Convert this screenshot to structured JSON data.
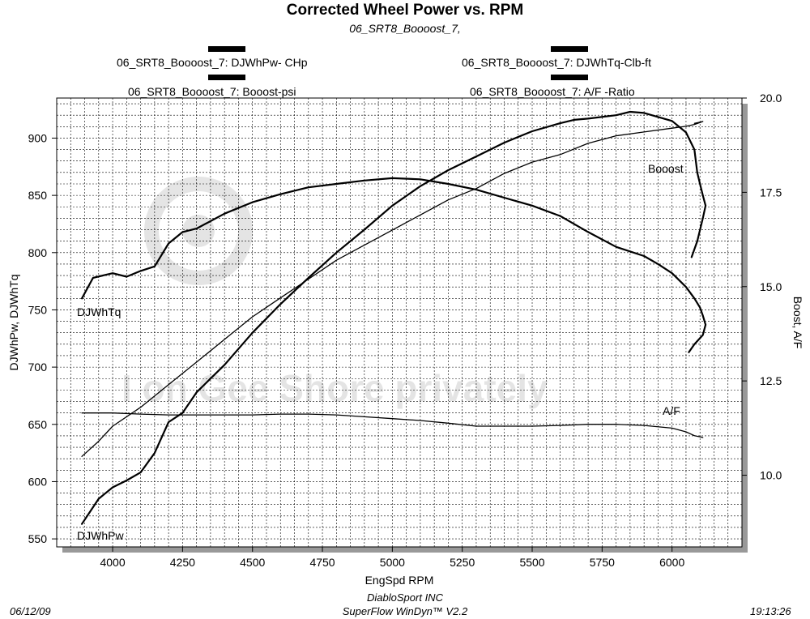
{
  "header": {
    "title": "Corrected Wheel Power vs. RPM",
    "subtitle": "06_SRT8_Boooost_7,"
  },
  "legend": {
    "power": "06_SRT8_Boooost_7: DJWhPw- CHp",
    "torque": "06_SRT8_Boooost_7: DJWhTq-Clb-ft",
    "boost": "06_SRT8_Boooost_7: Booost-psi",
    "af": "06_SRT8_Boooost_7:  A/F  -Ratio"
  },
  "footer": {
    "date": "06/12/09",
    "company": "DiabloSport INC",
    "software": "SuperFlow WinDyn™ V2.2",
    "time": "19:13:26"
  },
  "chart_data": {
    "type": "line",
    "title": "Corrected Wheel Power vs. RPM",
    "subtitle": "06_SRT8_Boooost_7,",
    "xlabel": "EngSpd  RPM",
    "ylabel_left": "DJWhPw,  DJWhTq",
    "ylabel_right": "Boost,  A/F",
    "xlim": [
      3800,
      6250
    ],
    "ylim_left": [
      543,
      935
    ],
    "ylim_right": [
      8.1,
      20.0
    ],
    "x_ticks": [
      4000,
      4250,
      4500,
      4750,
      5000,
      5250,
      5500,
      5750,
      6000
    ],
    "y_ticks_left": [
      550,
      600,
      650,
      700,
      750,
      800,
      850,
      900
    ],
    "y_ticks_right": [
      "10.0",
      "12.5",
      "15.0",
      "17.5",
      "20.0"
    ],
    "grid": true,
    "series": [
      {
        "name": "DJWhPw",
        "axis": "left",
        "label": "DJWhPw",
        "x": [
          3890,
          3950,
          4000,
          4050,
          4100,
          4150,
          4200,
          4250,
          4300,
          4400,
          4500,
          4600,
          4700,
          4800,
          4900,
          5000,
          5100,
          5200,
          5300,
          5400,
          5500,
          5600,
          5650,
          5700,
          5800,
          5850,
          5900,
          6000,
          6050,
          6080,
          6090,
          6100,
          6110,
          6120,
          6110,
          6090,
          6070
        ],
        "values": [
          563,
          585,
          595,
          601,
          608,
          625,
          652,
          660,
          678,
          702,
          730,
          755,
          778,
          800,
          820,
          841,
          858,
          872,
          884,
          896,
          906,
          913,
          916,
          917,
          920,
          923,
          922,
          915,
          905,
          890,
          870,
          860,
          850,
          841,
          830,
          810,
          796
        ]
      },
      {
        "name": "DJWhTq",
        "axis": "left",
        "label": "DJWhTq",
        "x": [
          3890,
          3930,
          4000,
          4050,
          4100,
          4150,
          4200,
          4250,
          4300,
          4400,
          4500,
          4600,
          4700,
          4800,
          4900,
          5000,
          5100,
          5200,
          5300,
          5400,
          5500,
          5600,
          5700,
          5800,
          5900,
          5950,
          6000,
          6050,
          6080,
          6100,
          6110,
          6120,
          6110,
          6080,
          6060
        ],
        "values": [
          760,
          778,
          782,
          779,
          784,
          788,
          808,
          818,
          821,
          834,
          844,
          851,
          857,
          860,
          863,
          865,
          864,
          860,
          855,
          848,
          841,
          832,
          818,
          805,
          797,
          790,
          782,
          770,
          760,
          752,
          745,
          737,
          728,
          720,
          713
        ]
      },
      {
        "name": "Booost",
        "axis": "right",
        "label": "Booost",
        "x": [
          3890,
          3950,
          4000,
          4100,
          4200,
          4300,
          4400,
          4500,
          4600,
          4700,
          4800,
          4900,
          5000,
          5100,
          5200,
          5300,
          5400,
          5500,
          5600,
          5700,
          5800,
          5900,
          6000,
          6050,
          6080,
          6100,
          6110,
          6100,
          6080
        ],
        "values": [
          10.5,
          10.9,
          11.3,
          11.8,
          12.4,
          13.0,
          13.6,
          14.2,
          14.7,
          15.2,
          15.7,
          16.1,
          16.5,
          16.9,
          17.3,
          17.6,
          18.0,
          18.3,
          18.5,
          18.8,
          19.0,
          19.1,
          19.2,
          19.25,
          19.3,
          19.35,
          19.38,
          19.36,
          19.33
        ]
      },
      {
        "name": "A/F",
        "axis": "right",
        "label": "A/F",
        "x": [
          3890,
          4000,
          4100,
          4200,
          4300,
          4400,
          4500,
          4600,
          4700,
          4800,
          4900,
          5000,
          5100,
          5200,
          5300,
          5400,
          5500,
          5600,
          5700,
          5800,
          5900,
          6000,
          6050,
          6080,
          6100,
          6110,
          6100,
          6080
        ],
        "values": [
          11.65,
          11.65,
          11.62,
          11.6,
          11.6,
          11.6,
          11.6,
          11.62,
          11.62,
          11.6,
          11.55,
          11.5,
          11.45,
          11.38,
          11.3,
          11.3,
          11.3,
          11.32,
          11.35,
          11.35,
          11.32,
          11.25,
          11.15,
          11.05,
          11.02,
          11.0,
          11.02,
          11.05
        ]
      }
    ]
  },
  "watermark": "I on Gee Shore privately"
}
